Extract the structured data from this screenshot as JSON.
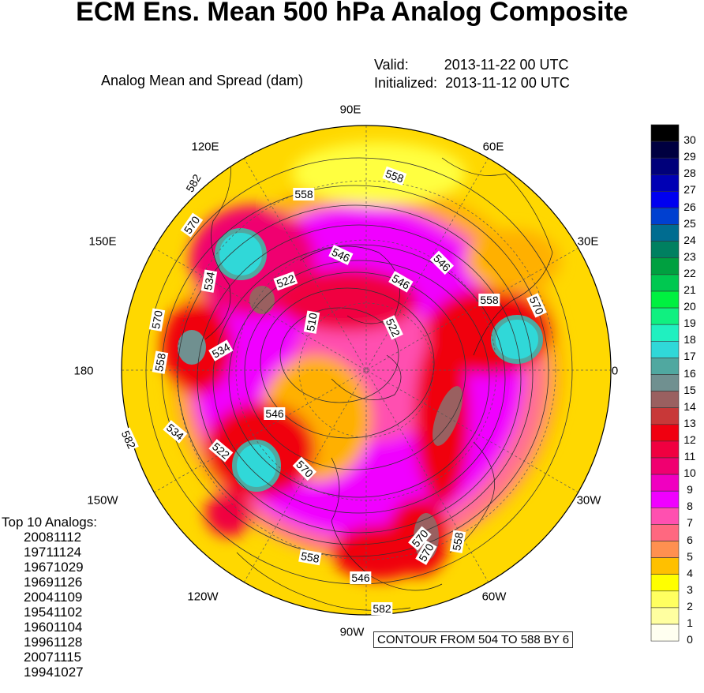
{
  "title": "ECM Ens. Mean 500 hPa Analog Composite",
  "subtitle": "Analog Mean and Spread (dam)",
  "valid": {
    "label": "Valid:",
    "value": "2013-11-22 00 UTC"
  },
  "initialized": {
    "label": "Initialized:",
    "value": "2013-11-12 00 UTC"
  },
  "longitude_labels": [
    "90E",
    "60E",
    "30E",
    "0",
    "30W",
    "60W",
    "90W",
    "120W",
    "150W",
    "180",
    "150E",
    "120E"
  ],
  "contour_labels": [
    "582",
    "570",
    "558",
    "546",
    "534",
    "522",
    "510",
    "522",
    "534",
    "546",
    "558",
    "570",
    "570",
    "558",
    "546",
    "534",
    "522",
    "570",
    "558",
    "546",
    "558",
    "570",
    "582",
    "582",
    "558",
    "546",
    "570"
  ],
  "analogs_title": "Top 10 Analogs:",
  "analogs": [
    "20081112",
    "19711124",
    "19671029",
    "19691126",
    "20041109",
    "19541102",
    "19601104",
    "19961128",
    "20071115",
    "19941027"
  ],
  "contour_note": "CONTOUR FROM 504 TO 588 BY 6",
  "colorbar": {
    "labels": [
      "30",
      "29",
      "28",
      "27",
      "26",
      "25",
      "24",
      "23",
      "22",
      "21",
      "20",
      "19",
      "18",
      "17",
      "16",
      "15",
      "14",
      "13",
      "12",
      "11",
      "10",
      "9",
      "8",
      "7",
      "6",
      "5",
      "4",
      "3",
      "2",
      "1",
      "0"
    ],
    "colors": [
      "#000000",
      "#000040",
      "#00007a",
      "#0000b4",
      "#0000f0",
      "#0040d0",
      "#006c90",
      "#008060",
      "#00a040",
      "#00c850",
      "#00f040",
      "#10f080",
      "#20f0c0",
      "#30d8d8",
      "#50a8a0",
      "#709090",
      "#9a6060",
      "#c83838",
      "#f00010",
      "#f00040",
      "#f00070",
      "#f000c0",
      "#f000ff",
      "#ff50b0",
      "#ff6880",
      "#ff9050",
      "#ffc000",
      "#ffff00",
      "#ffff60",
      "#ffffa0",
      "#fffff0"
    ]
  }
}
